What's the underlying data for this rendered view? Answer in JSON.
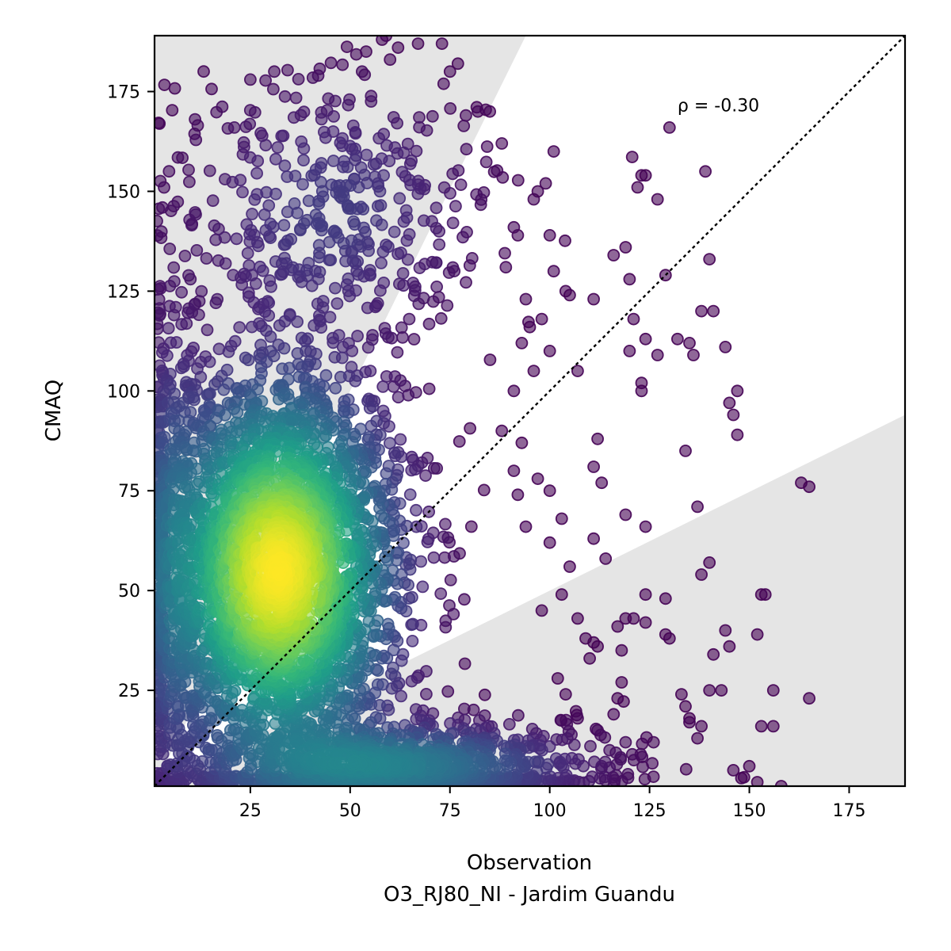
{
  "chart_data": {
    "type": "scatter",
    "title": "",
    "xlabel": "Observation",
    "xlabel_sub": "O3_RJ80_NI - Jardim Guandu",
    "ylabel": "CMAQ",
    "xlim": [
      1,
      189
    ],
    "ylim": [
      1,
      189
    ],
    "xticks": [
      25,
      50,
      75,
      100,
      125,
      150,
      175
    ],
    "yticks": [
      25,
      50,
      75,
      100,
      125,
      150,
      175
    ],
    "grid": false,
    "annotation": {
      "text": "ρ = -0.30",
      "x": 132,
      "y": 170
    },
    "reference_line": {
      "type": "identity",
      "style": "dotted"
    },
    "shaded_regions": [
      {
        "name": "upper",
        "polygon": [
          [
            1,
            1
          ],
          [
            1,
            189
          ],
          [
            94,
            189
          ]
        ]
      },
      {
        "name": "lower",
        "polygon": [
          [
            1,
            1
          ],
          [
            189,
            1
          ],
          [
            189,
            94
          ]
        ]
      }
    ],
    "density_clusters": [
      {
        "cx": 32,
        "cy": 55,
        "sx": 16,
        "sy": 26,
        "weight": 0.62
      },
      {
        "cx": 62,
        "cy": 6,
        "sx": 24,
        "sy": 6,
        "weight": 0.22
      },
      {
        "cx": 5,
        "cy": 60,
        "sx": 4,
        "sy": 35,
        "weight": 0.08
      },
      {
        "cx": 45,
        "cy": 145,
        "sx": 20,
        "sy": 18,
        "weight": 0.08
      }
    ],
    "outlier_points": [
      [
        130,
        166
      ],
      [
        139,
        155
      ],
      [
        124,
        154
      ],
      [
        123,
        154
      ],
      [
        127,
        148
      ],
      [
        122,
        151
      ],
      [
        140,
        133
      ],
      [
        129,
        129
      ],
      [
        119,
        136
      ],
      [
        116,
        134
      ],
      [
        120,
        128
      ],
      [
        111,
        123
      ],
      [
        104,
        125
      ],
      [
        105,
        124
      ],
      [
        101,
        130
      ],
      [
        141,
        120
      ],
      [
        138,
        120
      ],
      [
        135,
        112
      ],
      [
        132,
        113
      ],
      [
        124,
        113
      ],
      [
        127,
        109
      ],
      [
        120,
        110
      ],
      [
        121,
        118
      ],
      [
        136,
        109
      ],
      [
        144,
        111
      ],
      [
        145,
        97
      ],
      [
        146,
        94
      ],
      [
        147,
        100
      ],
      [
        147,
        89
      ],
      [
        134,
        85
      ],
      [
        123,
        102
      ],
      [
        123,
        100
      ],
      [
        107,
        105
      ],
      [
        112,
        88
      ],
      [
        111,
        81
      ],
      [
        113,
        77
      ],
      [
        163,
        77
      ],
      [
        165,
        76
      ],
      [
        137,
        71
      ],
      [
        119,
        69
      ],
      [
        124,
        66
      ],
      [
        111,
        63
      ],
      [
        114,
        58
      ],
      [
        140,
        57
      ],
      [
        138,
        54
      ],
      [
        129,
        48
      ],
      [
        124,
        49
      ],
      [
        153,
        49
      ],
      [
        154,
        49
      ],
      [
        152,
        39
      ],
      [
        156,
        25
      ],
      [
        165,
        23
      ],
      [
        153,
        16
      ],
      [
        156,
        16
      ],
      [
        144,
        40
      ],
      [
        145,
        36
      ],
      [
        141,
        34
      ],
      [
        140,
        25
      ],
      [
        143,
        25
      ],
      [
        133,
        24
      ],
      [
        134,
        21
      ],
      [
        135,
        18
      ],
      [
        137,
        13
      ],
      [
        135,
        17
      ],
      [
        138,
        16
      ],
      [
        129,
        39
      ],
      [
        130,
        38
      ],
      [
        124,
        42
      ],
      [
        121,
        43
      ],
      [
        119,
        43
      ],
      [
        117,
        41
      ],
      [
        111,
        37
      ],
      [
        112,
        36
      ],
      [
        118,
        35
      ],
      [
        118,
        27
      ],
      [
        117,
        23
      ],
      [
        116,
        19
      ],
      [
        119,
        12
      ],
      [
        126,
        12
      ],
      [
        150,
        6
      ],
      [
        146,
        5
      ],
      [
        148,
        3
      ],
      [
        152,
        2
      ],
      [
        158,
        1
      ],
      [
        101,
        160
      ],
      [
        85,
        170
      ],
      [
        88,
        162
      ],
      [
        79,
        169
      ],
      [
        82,
        170
      ],
      [
        77,
        182
      ],
      [
        73,
        187
      ],
      [
        75,
        180
      ],
      [
        67,
        187
      ],
      [
        62,
        186
      ],
      [
        60,
        183
      ],
      [
        58,
        188
      ],
      [
        59,
        189
      ],
      [
        53,
        180
      ],
      [
        54,
        185
      ],
      [
        31,
        180
      ],
      [
        42,
        179
      ],
      [
        25,
        178
      ],
      [
        21,
        166
      ],
      [
        99,
        152
      ],
      [
        97,
        150
      ],
      [
        96,
        148
      ],
      [
        91,
        141
      ],
      [
        92,
        139
      ],
      [
        100,
        139
      ],
      [
        89,
        131
      ],
      [
        94,
        123
      ],
      [
        95,
        116
      ],
      [
        98,
        118
      ],
      [
        93,
        112
      ],
      [
        96,
        105
      ],
      [
        100,
        110
      ],
      [
        91,
        100
      ],
      [
        88,
        90
      ],
      [
        93,
        87
      ],
      [
        91,
        80
      ],
      [
        97,
        78
      ],
      [
        100,
        75
      ],
      [
        92,
        74
      ],
      [
        103,
        68
      ],
      [
        94,
        66
      ],
      [
        100,
        62
      ],
      [
        105,
        56
      ],
      [
        103,
        49
      ],
      [
        98,
        45
      ],
      [
        107,
        43
      ],
      [
        109,
        38
      ],
      [
        110,
        33
      ],
      [
        102,
        28
      ],
      [
        104,
        24
      ],
      [
        107,
        18
      ],
      [
        112,
        15
      ],
      [
        115,
        10
      ],
      [
        113,
        6
      ]
    ]
  }
}
